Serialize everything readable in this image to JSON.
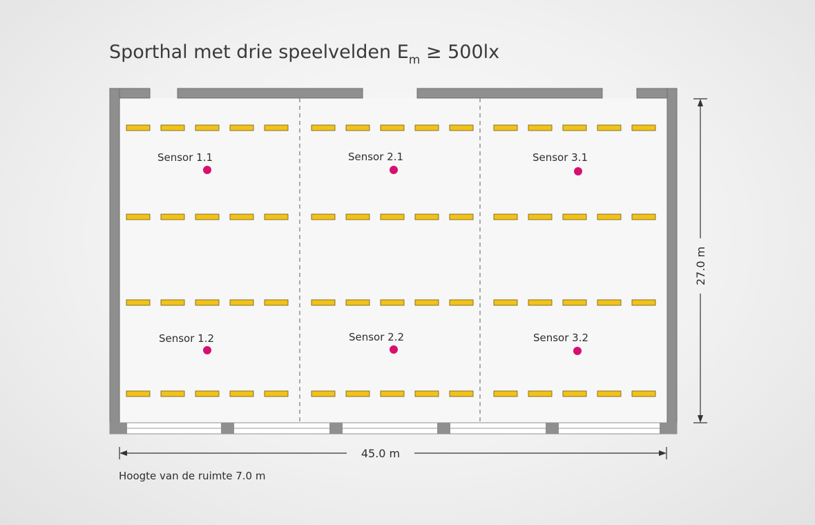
{
  "title": {
    "main": "Sporthal met drie speelvelden E",
    "subscript": "m",
    "suffix": " ≥ 500lx"
  },
  "sensors": [
    {
      "label": "Sensor 1.1"
    },
    {
      "label": "Sensor 2.1"
    },
    {
      "label": "Sensor 3.1"
    },
    {
      "label": "Sensor 1.2"
    },
    {
      "label": "Sensor 2.2"
    },
    {
      "label": "Sensor 3.2"
    }
  ],
  "dimensions": {
    "width_label": "45.0 m",
    "height_label": "27.0 m"
  },
  "note": "Hoogte van de ruimte 7.0 m",
  "colors": {
    "wall": "#8f8f8f",
    "luminaire": "#f2c21b",
    "luminaire_edge": "#6b5a10",
    "sensor": "#d6106e",
    "floor": "#f7f7f7"
  },
  "layout_info": {
    "fields": 3,
    "luminaire_rows": 4,
    "luminaires_per_row_per_field": 5
  }
}
